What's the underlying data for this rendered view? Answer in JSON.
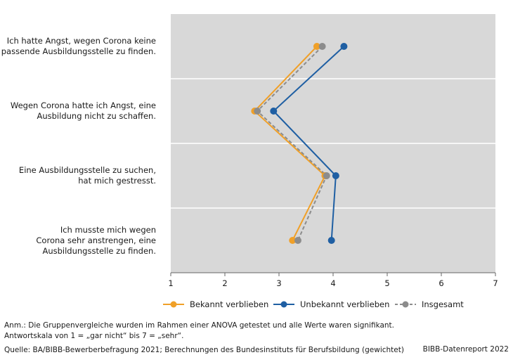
{
  "chart_data": {
    "type": "line",
    "orientation": "horizontal",
    "categories": [
      "Ich hatte Angst, wegen Corona keine\npassende Ausbildungsstelle zu finden.",
      "Wegen Corona hatte ich Angst, eine\nAusbildung nicht zu schaffen.",
      "Eine Ausbildungsstelle zu suchen,\nhat mich gestresst.",
      "Ich musste mich wegen\nCorona sehr anstrengen, eine\nAusbildungsstelle zu finden."
    ],
    "series": [
      {
        "name": "Bekannt verblieben",
        "values": [
          3.7,
          2.55,
          3.85,
          3.25
        ],
        "color": "#f0a028",
        "dashed": false
      },
      {
        "name": "Unbekannt verblieben",
        "values": [
          4.2,
          2.9,
          4.05,
          3.97
        ],
        "color": "#1f5fa3",
        "dashed": false
      },
      {
        "name": "Insgesamt",
        "values": [
          3.8,
          2.6,
          3.88,
          3.35
        ],
        "color": "#8c8c8c",
        "dashed": true
      }
    ],
    "xlim": [
      1,
      7
    ],
    "xticks": [
      "1",
      "2",
      "3",
      "4",
      "5",
      "6",
      "7"
    ],
    "grid": true,
    "legend_position": "bottom"
  },
  "footnotes": {
    "anm": "Anm.: Die Gruppenvergleiche wurden im Rahmen einer ANOVA getestet und alle Werte waren signifikant.",
    "scale": "Antwortskala von 1 = „gar nicht“ bis 7 = „sehr“.",
    "source": "Quelle: BA/BIBB-Bewerberbefragung 2021; Berechnungen des Bundesinstituts für Berufsbildung (gewichtet)",
    "report": "BIBB-Datenreport 2022"
  },
  "colors": {
    "plot_background": "#d8d8d8",
    "axis": "#666666"
  }
}
